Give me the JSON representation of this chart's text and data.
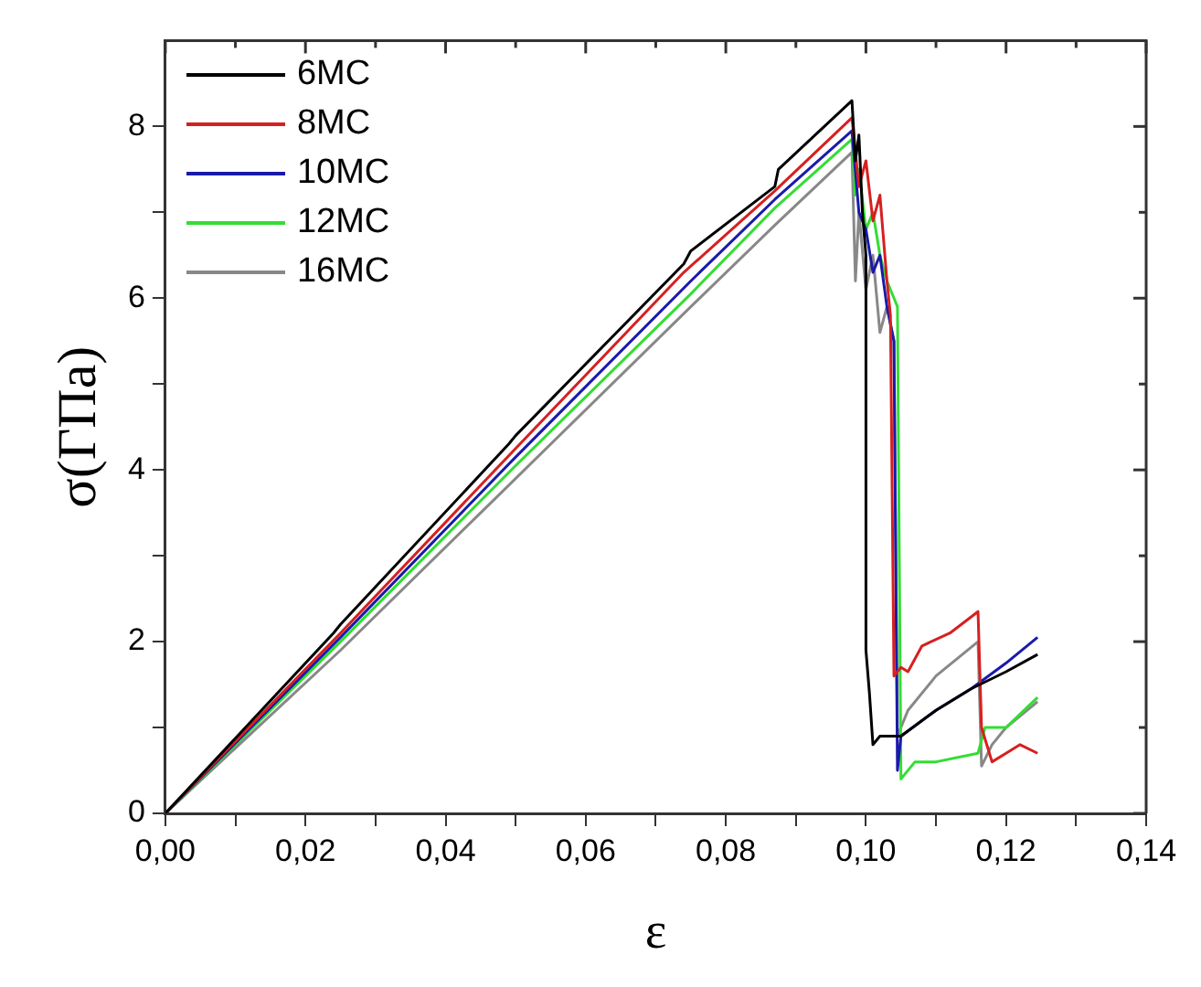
{
  "chart_data": {
    "type": "line",
    "xlabel": "ε",
    "ylabel": "σ(ΓΠa)",
    "xlim": [
      0,
      0.14
    ],
    "ylim": [
      0,
      9
    ],
    "xticks": [
      {
        "value": 0,
        "label": "0,00"
      },
      {
        "value": 0.01,
        "label": null
      },
      {
        "value": 0.02,
        "label": "0,02"
      },
      {
        "value": 0.03,
        "label": null
      },
      {
        "value": 0.04,
        "label": "0,04"
      },
      {
        "value": 0.05,
        "label": null
      },
      {
        "value": 0.06,
        "label": "0,06"
      },
      {
        "value": 0.07,
        "label": null
      },
      {
        "value": 0.08,
        "label": "0,08"
      },
      {
        "value": 0.09,
        "label": null
      },
      {
        "value": 0.1,
        "label": "0,10"
      },
      {
        "value": 0.11,
        "label": null
      },
      {
        "value": 0.12,
        "label": "0,12"
      },
      {
        "value": 0.13,
        "label": null
      },
      {
        "value": 0.14,
        "label": "0,14"
      }
    ],
    "yticks": [
      0,
      {
        "value": 1,
        "label": null
      },
      2,
      {
        "value": 3,
        "label": null
      },
      4,
      {
        "value": 5,
        "label": null
      },
      6,
      {
        "value": 7,
        "label": null
      },
      8
    ],
    "grid": false,
    "legend": "top left",
    "marker": "none",
    "line_style": "solid",
    "series": [
      {
        "name": "6MC",
        "color": "#000000",
        "x": [
          0,
          0.024,
          0.025,
          0.049,
          0.05,
          0.074,
          0.075,
          0.087,
          0.0875,
          0.098,
          0.0985,
          0.099,
          0.0995,
          0.1,
          0.1,
          0.1005,
          0.101,
          0.102,
          0.105,
          0.11,
          0.115,
          0.12,
          0.1245
        ],
        "values": [
          0,
          2.1,
          2.2,
          4.3,
          4.4,
          6.4,
          6.55,
          7.3,
          7.5,
          8.3,
          7.6,
          7.9,
          7.0,
          6.5,
          1.9,
          1.4,
          0.8,
          0.9,
          0.9,
          1.2,
          1.45,
          1.65,
          1.85
        ]
      },
      {
        "name": "8MC",
        "color": "#d62020",
        "x": [
          0,
          0.025,
          0.05,
          0.074,
          0.087,
          0.098,
          0.099,
          0.1,
          0.101,
          0.102,
          0.103,
          0.1035,
          0.104,
          0.105,
          0.106,
          0.108,
          0.112,
          0.116,
          0.1165,
          0.118,
          0.12,
          0.122,
          0.1245
        ],
        "values": [
          0,
          2.1,
          4.25,
          6.3,
          7.25,
          8.1,
          7.3,
          7.6,
          6.9,
          7.2,
          6.2,
          5.8,
          1.6,
          1.7,
          1.65,
          1.95,
          2.1,
          2.35,
          1.0,
          0.6,
          0.7,
          0.8,
          0.7
        ]
      },
      {
        "name": "10MC",
        "color": "#1a1aaa",
        "x": [
          0,
          0.025,
          0.05,
          0.075,
          0.087,
          0.098,
          0.099,
          0.1,
          0.101,
          0.102,
          0.103,
          0.104,
          0.1045,
          0.105,
          0.11,
          0.115,
          0.12,
          0.1245
        ],
        "values": [
          0,
          2.05,
          4.15,
          6.2,
          7.15,
          7.95,
          7.0,
          6.8,
          6.3,
          6.5,
          5.9,
          5.5,
          0.5,
          0.9,
          1.2,
          1.45,
          1.75,
          2.05
        ]
      },
      {
        "name": "12MC",
        "color": "#33dd33",
        "x": [
          0,
          0.025,
          0.05,
          0.075,
          0.087,
          0.098,
          0.0985,
          0.099,
          0.1,
          0.101,
          0.102,
          0.103,
          0.104,
          0.1045,
          0.105,
          0.107,
          0.11,
          0.116,
          0.117,
          0.12,
          0.1245
        ],
        "values": [
          0,
          2.0,
          4.05,
          6.05,
          7.05,
          7.85,
          7.2,
          7.5,
          6.8,
          7.0,
          6.5,
          6.2,
          6.0,
          5.9,
          0.4,
          0.6,
          0.6,
          0.7,
          1.0,
          1.0,
          1.35
        ]
      },
      {
        "name": "16MC",
        "color": "#888888",
        "x": [
          0,
          0.025,
          0.05,
          0.075,
          0.087,
          0.098,
          0.0985,
          0.099,
          0.1,
          0.101,
          0.102,
          0.103,
          0.104,
          0.1045,
          0.106,
          0.11,
          0.116,
          0.1165,
          0.118,
          0.12,
          0.1245
        ],
        "values": [
          0,
          1.9,
          3.9,
          5.9,
          6.85,
          7.7,
          6.2,
          7.0,
          6.1,
          6.5,
          5.6,
          5.9,
          5.5,
          0.9,
          1.2,
          1.6,
          2.0,
          0.55,
          0.8,
          1.0,
          1.3
        ]
      }
    ]
  }
}
